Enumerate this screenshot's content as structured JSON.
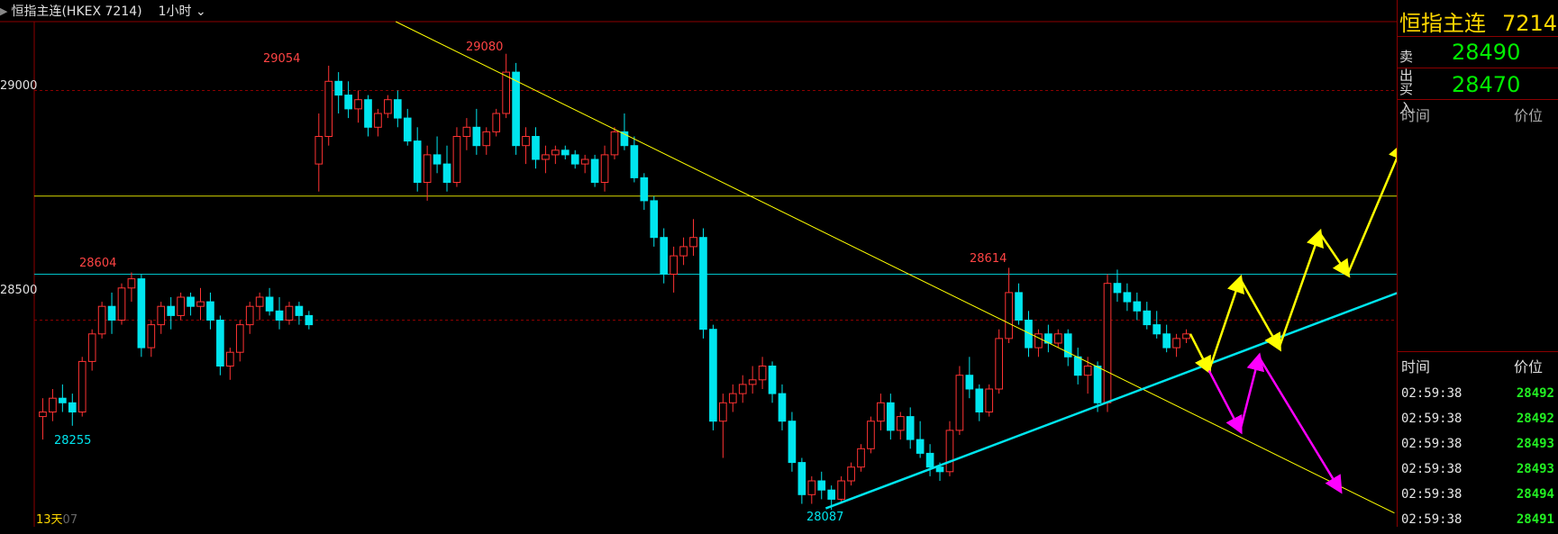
{
  "toolbar": {
    "title": "恒指主连(HKEX 7214)",
    "timeframe": "1小时"
  },
  "y_axis": {
    "labels": [
      "29000",
      "28500"
    ]
  },
  "annotations": {
    "high1": "29054",
    "high2": "29080",
    "high3": "28604",
    "high4": "28614",
    "low1": "28255",
    "low2": "28087"
  },
  "footer": {
    "days": "13天",
    "date_fragment": "07"
  },
  "quote": {
    "name": "恒指主连",
    "code": "7214",
    "ask_label": "卖出",
    "ask_value": "28490",
    "bid_label": "买入",
    "bid_value": "28470",
    "col_time": "时间",
    "col_price": "价位"
  },
  "ticks": [
    {
      "time": "02:59:38",
      "price": "28492"
    },
    {
      "time": "02:59:38",
      "price": "28492"
    },
    {
      "time": "02:59:38",
      "price": "28493"
    },
    {
      "time": "02:59:38",
      "price": "28493"
    },
    {
      "time": "02:59:38",
      "price": "28494"
    },
    {
      "time": "02:59:38",
      "price": "28491"
    }
  ],
  "colors": {
    "up": "#ff3333",
    "down": "#00e5ee",
    "trend_yellow": "#ffff00",
    "trend_cyan": "#00e5ee",
    "projection_magenta": "#ff00ff",
    "grid_red": "#8b0000",
    "price_green": "#22ee22"
  },
  "chart_data": {
    "type": "candlestick",
    "price_range": [
      28050,
      29150
    ],
    "levels": [
      29000,
      28500
    ],
    "candles": [
      [
        28290,
        28330,
        28240,
        28300
      ],
      [
        28300,
        28350,
        28280,
        28330
      ],
      [
        28330,
        28360,
        28300,
        28320
      ],
      [
        28320,
        28340,
        28270,
        28300
      ],
      [
        28300,
        28420,
        28290,
        28410
      ],
      [
        28410,
        28480,
        28390,
        28470
      ],
      [
        28470,
        28540,
        28460,
        28530
      ],
      [
        28530,
        28560,
        28470,
        28500
      ],
      [
        28500,
        28580,
        28490,
        28570
      ],
      [
        28570,
        28604,
        28540,
        28590
      ],
      [
        28590,
        28600,
        28420,
        28440
      ],
      [
        28440,
        28500,
        28420,
        28490
      ],
      [
        28490,
        28540,
        28470,
        28530
      ],
      [
        28530,
        28550,
        28480,
        28510
      ],
      [
        28510,
        28560,
        28500,
        28550
      ],
      [
        28550,
        28560,
        28510,
        28530
      ],
      [
        28530,
        28570,
        28500,
        28540
      ],
      [
        28540,
        28560,
        28480,
        28500
      ],
      [
        28500,
        28510,
        28380,
        28400
      ],
      [
        28400,
        28440,
        28370,
        28430
      ],
      [
        28430,
        28500,
        28410,
        28490
      ],
      [
        28490,
        28540,
        28470,
        28530
      ],
      [
        28530,
        28560,
        28500,
        28550
      ],
      [
        28550,
        28570,
        28510,
        28520
      ],
      [
        28520,
        28550,
        28480,
        28500
      ],
      [
        28500,
        28540,
        28490,
        28530
      ],
      [
        28530,
        28540,
        28490,
        28510
      ],
      [
        28510,
        28520,
        28480,
        28490
      ],
      [
        28840,
        28950,
        28780,
        28900
      ],
      [
        28900,
        29054,
        28880,
        29020
      ],
      [
        29020,
        29040,
        28950,
        28990
      ],
      [
        28990,
        29020,
        28940,
        28960
      ],
      [
        28960,
        29000,
        28930,
        28980
      ],
      [
        28980,
        28990,
        28900,
        28920
      ],
      [
        28920,
        28960,
        28900,
        28950
      ],
      [
        28950,
        28990,
        28940,
        28980
      ],
      [
        28980,
        29000,
        28920,
        28940
      ],
      [
        28940,
        28960,
        28880,
        28890
      ],
      [
        28890,
        28920,
        28780,
        28800
      ],
      [
        28800,
        28880,
        28760,
        28860
      ],
      [
        28860,
        28900,
        28820,
        28840
      ],
      [
        28840,
        28880,
        28780,
        28800
      ],
      [
        28800,
        28920,
        28790,
        28900
      ],
      [
        28900,
        28940,
        28870,
        28920
      ],
      [
        28920,
        28960,
        28860,
        28880
      ],
      [
        28880,
        28920,
        28860,
        28910
      ],
      [
        28910,
        28960,
        28900,
        28950
      ],
      [
        28950,
        29080,
        28940,
        29040
      ],
      [
        29040,
        29060,
        28860,
        28880
      ],
      [
        28880,
        28920,
        28840,
        28900
      ],
      [
        28900,
        28920,
        28830,
        28850
      ],
      [
        28850,
        28880,
        28820,
        28860
      ],
      [
        28860,
        28880,
        28840,
        28870
      ],
      [
        28870,
        28880,
        28850,
        28860
      ],
      [
        28860,
        28870,
        28830,
        28840
      ],
      [
        28840,
        28860,
        28820,
        28850
      ],
      [
        28850,
        28860,
        28790,
        28800
      ],
      [
        28800,
        28880,
        28780,
        28860
      ],
      [
        28860,
        28920,
        28850,
        28910
      ],
      [
        28910,
        28950,
        28870,
        28880
      ],
      [
        28880,
        28900,
        28800,
        28810
      ],
      [
        28810,
        28820,
        28740,
        28760
      ],
      [
        28760,
        28770,
        28660,
        28680
      ],
      [
        28680,
        28700,
        28580,
        28600
      ],
      [
        28600,
        28660,
        28560,
        28640
      ],
      [
        28640,
        28680,
        28620,
        28660
      ],
      [
        28660,
        28720,
        28640,
        28680
      ],
      [
        28680,
        28700,
        28460,
        28480
      ],
      [
        28480,
        28490,
        28260,
        28280
      ],
      [
        28280,
        28340,
        28200,
        28320
      ],
      [
        28320,
        28360,
        28300,
        28340
      ],
      [
        28340,
        28380,
        28320,
        28360
      ],
      [
        28360,
        28400,
        28340,
        28370
      ],
      [
        28370,
        28420,
        28350,
        28400
      ],
      [
        28400,
        28410,
        28320,
        28340
      ],
      [
        28340,
        28360,
        28260,
        28280
      ],
      [
        28280,
        28300,
        28170,
        28190
      ],
      [
        28190,
        28200,
        28100,
        28120
      ],
      [
        28120,
        28160,
        28100,
        28150
      ],
      [
        28150,
        28170,
        28110,
        28130
      ],
      [
        28130,
        28140,
        28087,
        28110
      ],
      [
        28110,
        28160,
        28100,
        28150
      ],
      [
        28150,
        28190,
        28140,
        28180
      ],
      [
        28180,
        28230,
        28170,
        28220
      ],
      [
        28220,
        28290,
        28210,
        28280
      ],
      [
        28280,
        28340,
        28260,
        28320
      ],
      [
        28320,
        28340,
        28240,
        28260
      ],
      [
        28260,
        28300,
        28240,
        28290
      ],
      [
        28290,
        28310,
        28220,
        28240
      ],
      [
        28240,
        28280,
        28200,
        28210
      ],
      [
        28210,
        28230,
        28160,
        28180
      ],
      [
        28180,
        28190,
        28150,
        28170
      ],
      [
        28170,
        28280,
        28160,
        28260
      ],
      [
        28260,
        28400,
        28250,
        28380
      ],
      [
        28380,
        28420,
        28330,
        28350
      ],
      [
        28350,
        28360,
        28280,
        28300
      ],
      [
        28300,
        28360,
        28290,
        28350
      ],
      [
        28350,
        28480,
        28340,
        28460
      ],
      [
        28460,
        28614,
        28450,
        28560
      ],
      [
        28560,
        28580,
        28490,
        28500
      ],
      [
        28500,
        28520,
        28420,
        28440
      ],
      [
        28440,
        28480,
        28420,
        28470
      ],
      [
        28470,
        28490,
        28430,
        28450
      ],
      [
        28450,
        28480,
        28440,
        28470
      ],
      [
        28470,
        28480,
        28400,
        28420
      ],
      [
        28420,
        28440,
        28360,
        28380
      ],
      [
        28380,
        28420,
        28340,
        28400
      ],
      [
        28400,
        28410,
        28300,
        28320
      ],
      [
        28320,
        28600,
        28300,
        28580
      ],
      [
        28580,
        28610,
        28540,
        28560
      ],
      [
        28560,
        28580,
        28520,
        28540
      ],
      [
        28540,
        28560,
        28500,
        28520
      ],
      [
        28520,
        28540,
        28480,
        28490
      ],
      [
        28490,
        28520,
        28460,
        28470
      ],
      [
        28470,
        28490,
        28430,
        28440
      ],
      [
        28440,
        28470,
        28420,
        28460
      ],
      [
        28460,
        28480,
        28450,
        28470
      ]
    ],
    "trendlines": [
      {
        "color": "yellow",
        "from": [
          0.254,
          29150
        ],
        "to": [
          0.895,
          28080
        ]
      },
      {
        "color": "cyan",
        "from": [
          0.53,
          28090
        ],
        "to": [
          0.96,
          28640
        ]
      }
    ],
    "horizontal_lines": [
      {
        "color": "yellow",
        "price": 28770
      },
      {
        "color": "cyan",
        "price": 28600
      }
    ],
    "projections": [
      {
        "color": "yellow",
        "points": [
          [
            0.764,
            28470
          ],
          [
            0.776,
            28390
          ],
          [
            0.796,
            28590
          ],
          [
            0.821,
            28440
          ],
          [
            0.847,
            28690
          ],
          [
            0.865,
            28600
          ],
          [
            0.9,
            28880
          ]
        ]
      },
      {
        "color": "magenta",
        "points": [
          [
            0.776,
            28390
          ],
          [
            0.796,
            28260
          ],
          [
            0.808,
            28420
          ],
          [
            0.86,
            28130
          ]
        ]
      }
    ]
  }
}
